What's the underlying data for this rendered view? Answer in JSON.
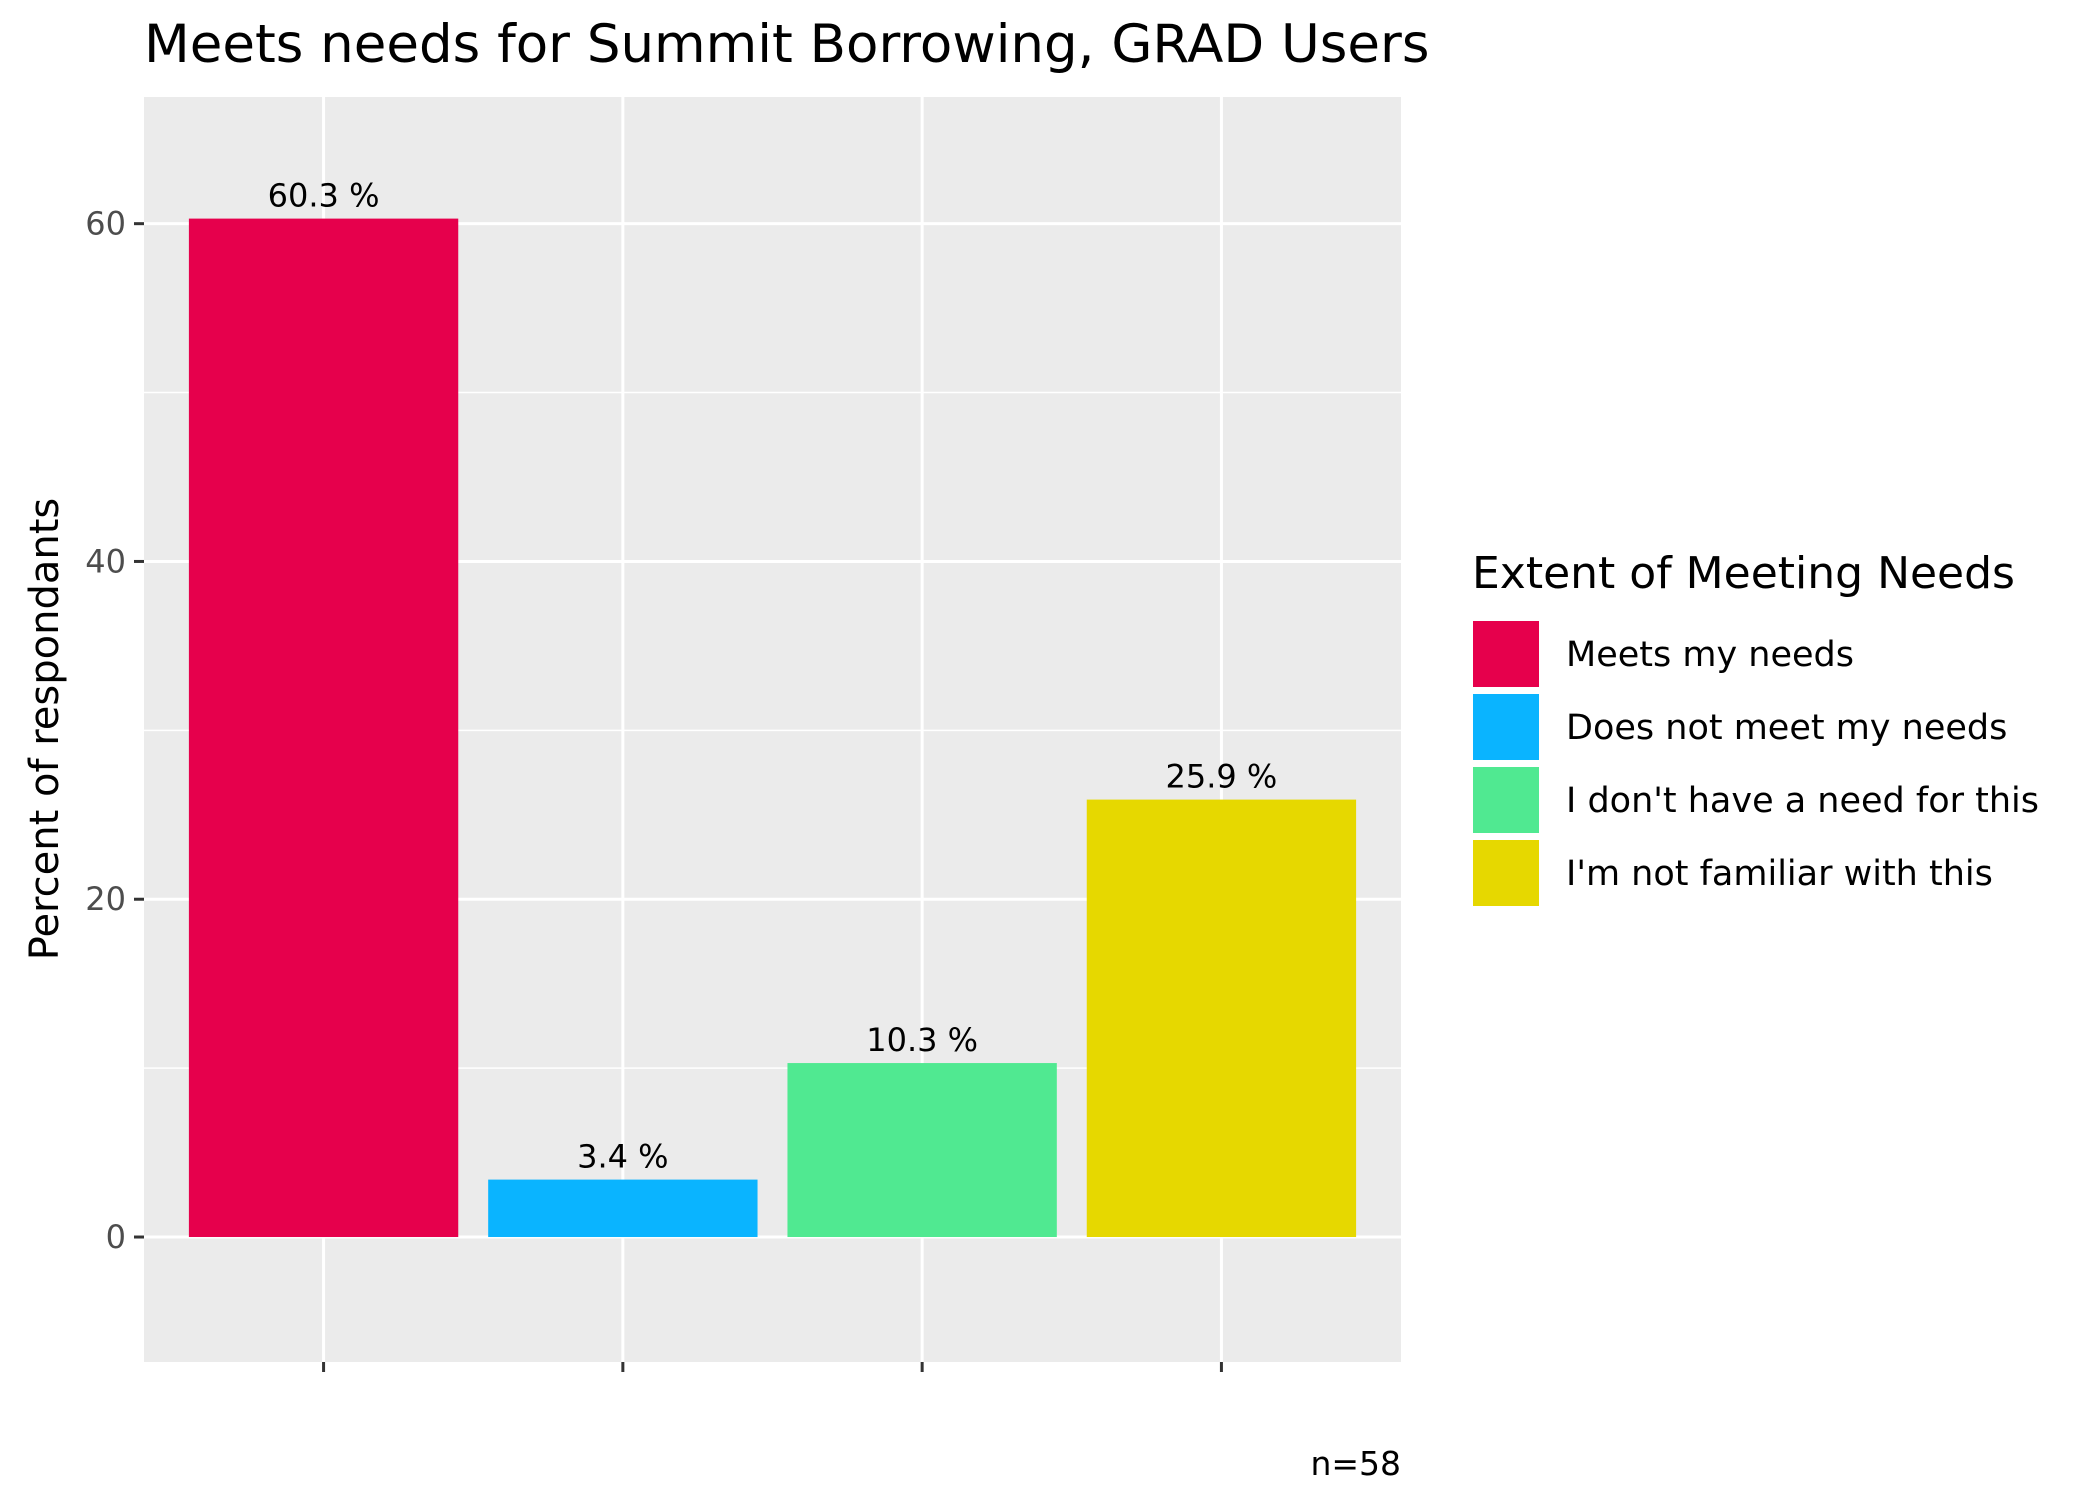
{
  "chart_data": {
    "type": "bar",
    "title": "Meets needs for Summit Borrowing, GRAD Users",
    "xlabel": "",
    "ylabel": "Percent of respondants",
    "ylim": [
      -7.4,
      67.5
    ],
    "yticks": [
      0,
      20,
      40,
      60
    ],
    "ytick_labels": [
      "0",
      "20",
      "40",
      "60"
    ],
    "grid": true,
    "categories": [
      "Meets my needs",
      "Does not meet my needs",
      "I don't have a need for this",
      "I'm not familiar with this"
    ],
    "values": [
      60.3,
      3.4,
      10.3,
      25.9
    ],
    "data_labels": [
      "60.3 %",
      "3.4 %",
      "10.3 %",
      "25.9 %"
    ],
    "colors": [
      "#E6004C",
      "#0AB4FF",
      "#50E991",
      "#E6D800"
    ],
    "legend": {
      "title": "Extent of Meeting Needs",
      "placement": "right",
      "entries": [
        "Meets my needs",
        "Does not meet my needs",
        "I don't have a need for this",
        "I'm not familiar with this"
      ]
    },
    "caption": "n=58",
    "panel_background": "#EBEBEB",
    "grid_color": "#FFFFFF"
  }
}
